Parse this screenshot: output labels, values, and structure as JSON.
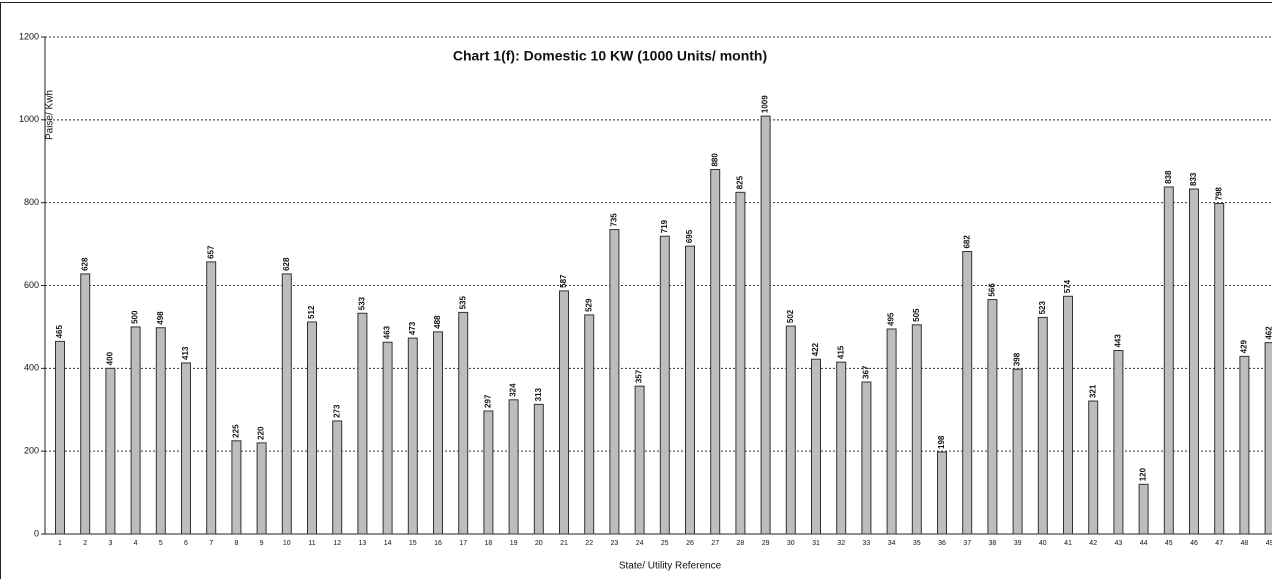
{
  "chart_data": {
    "type": "bar",
    "title": "Chart 1(f): Domestic 10 KW (1000 Units/ month)",
    "y_label": "Paise/ Kwh",
    "x_label": "State/ Utility Reference",
    "categories": [
      "1",
      "2",
      "3",
      "4",
      "5",
      "6",
      "7",
      "8",
      "9",
      "10",
      "11",
      "12",
      "13",
      "14",
      "15",
      "16",
      "17",
      "18",
      "19",
      "20",
      "21",
      "22",
      "23",
      "24",
      "25",
      "26",
      "27",
      "28",
      "29",
      "30",
      "31",
      "32",
      "33",
      "34",
      "35",
      "36",
      "37",
      "38",
      "39",
      "40",
      "41",
      "42",
      "43",
      "44",
      "45",
      "46",
      "47",
      "48",
      "49"
    ],
    "values": [
      465,
      628,
      400,
      500,
      498,
      413,
      657,
      225,
      220,
      628,
      512,
      273,
      533,
      463,
      473,
      488,
      535,
      297,
      324,
      313,
      587,
      529,
      735,
      357,
      719,
      695,
      880,
      825,
      1009,
      502,
      422,
      415,
      367,
      495,
      505,
      198,
      682,
      566,
      398,
      523,
      574,
      321,
      443,
      120,
      838,
      833,
      798,
      429,
      462
    ],
    "color": "#bdbdbd",
    "ylim": [
      0,
      1200
    ],
    "yticks": [
      0,
      200,
      400,
      600,
      800,
      1000,
      1200
    ],
    "grid": true
  }
}
